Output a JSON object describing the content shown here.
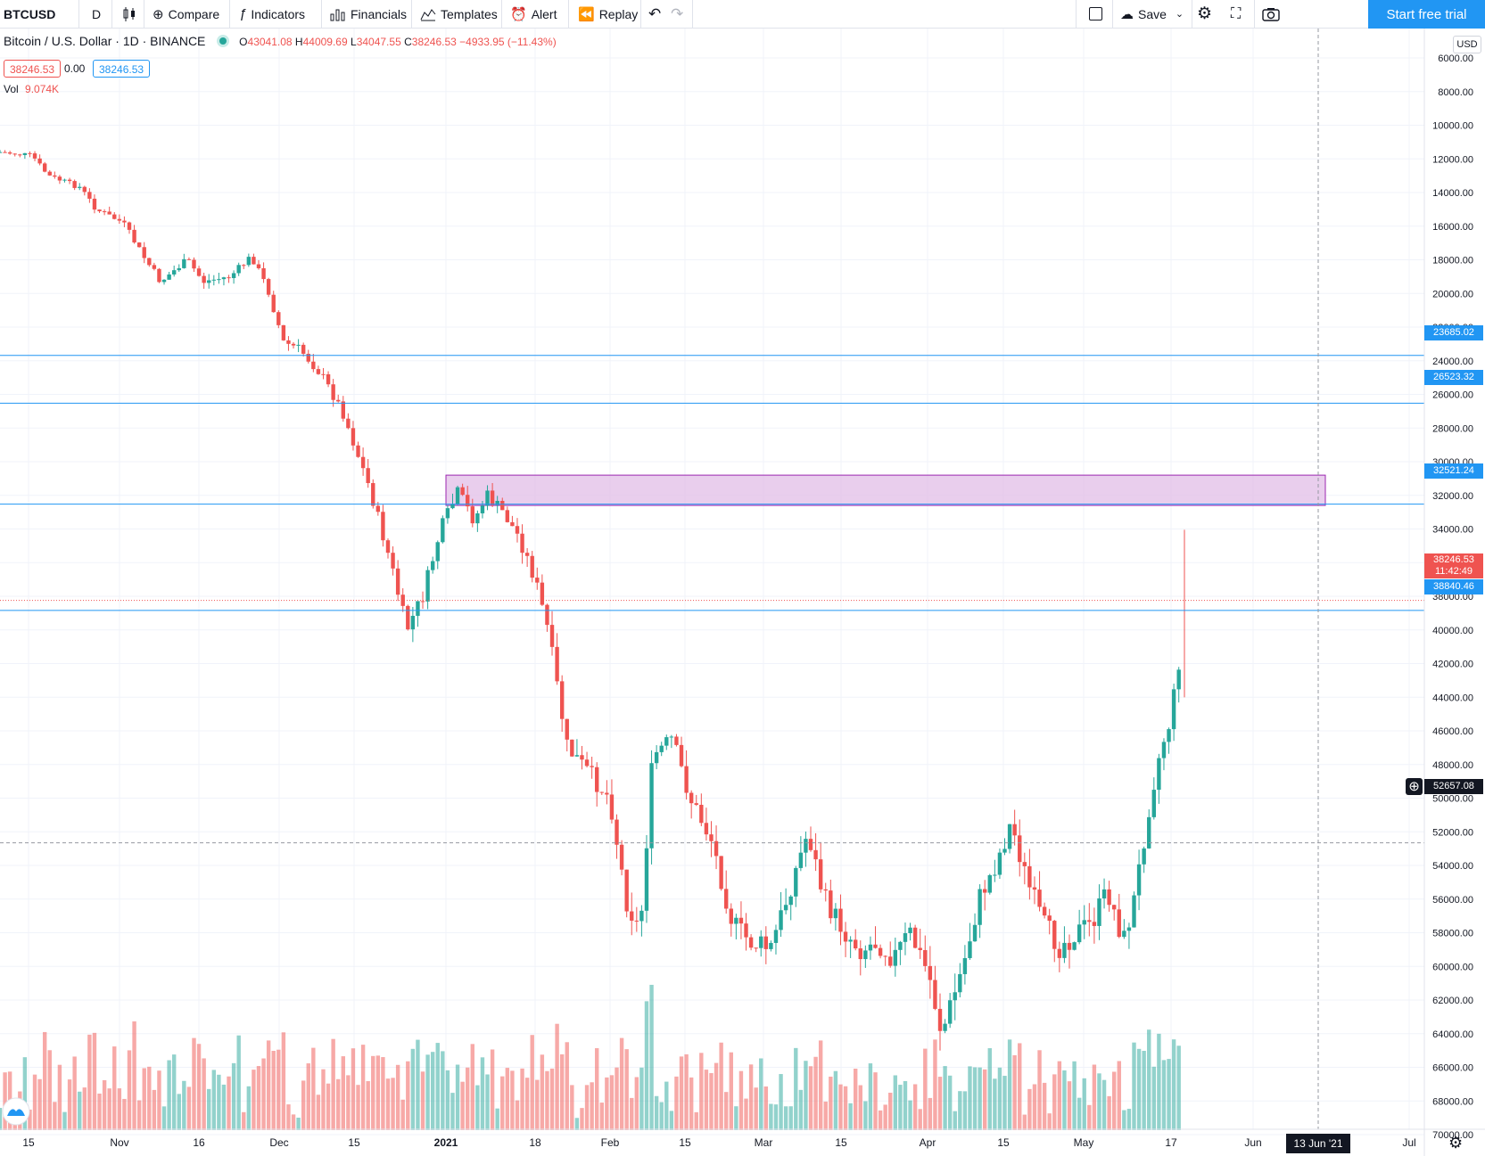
{
  "toolbar": {
    "symbol": "BTCUSD",
    "interval": "D",
    "compare": "Compare",
    "indicators": "Indicators",
    "financials": "Financials",
    "templates": "Templates",
    "alert": "Alert",
    "replay": "Replay",
    "save": "Save",
    "start_trial": "Start free trial"
  },
  "legend": {
    "title": "Bitcoin / U.S. Dollar · 1D · BINANCE",
    "open_k": "O",
    "open": "43041.08",
    "high_k": "H",
    "high": "44009.69",
    "low_k": "L",
    "low": "34047.55",
    "close_k": "C",
    "close": "38246.53",
    "change": "−4933.95 (−11.43%)",
    "bid": "38246.53",
    "spread": "0.00",
    "ask": "38246.53",
    "vol_k": "Vol",
    "vol": "9.074K"
  },
  "axis": {
    "currency": "USD",
    "ticks": [
      "6000.00",
      "8000.00",
      "10000.00",
      "12000.00",
      "14000.00",
      "16000.00",
      "18000.00",
      "20000.00",
      "22000.00",
      "24000.00",
      "26000.00",
      "28000.00",
      "30000.00",
      "32000.00",
      "34000.00",
      "36000.00",
      "38000.00",
      "40000.00",
      "42000.00",
      "44000.00",
      "46000.00",
      "48000.00",
      "50000.00",
      "52000.00",
      "54000.00",
      "56000.00",
      "58000.00",
      "60000.00",
      "62000.00",
      "64000.00",
      "66000.00",
      "68000.00",
      "70000.00"
    ],
    "hlines": [
      "23685.02",
      "26523.32",
      "32521.24",
      "38840.46"
    ],
    "last_price": "38246.53",
    "countdown": "11:42:49",
    "crosshair_price": "52657.08",
    "time_labels": [
      "15",
      "Nov",
      "16",
      "Dec",
      "15",
      "2021",
      "18",
      "Feb",
      "15",
      "Mar",
      "15",
      "Apr",
      "15",
      "May",
      "17",
      "Jun",
      "Jul"
    ],
    "crosshair_date": "13 Jun '21"
  },
  "colors": {
    "up": "#26a69a",
    "down": "#ef5350",
    "hline": "#2196f3",
    "zone": "#e1bee7",
    "zone_border": "#9c27b0"
  },
  "chart_data": {
    "type": "candlestick",
    "symbol": "BTCUSD",
    "interval": "1D",
    "axis": "inverted",
    "ylim": [
      70000,
      6000
    ],
    "hlines": [
      23685.02,
      26523.32,
      32521.24,
      38840.46
    ],
    "zone": [
      30800,
      32600
    ],
    "crosshair_price": 52657.08,
    "last_bar": {
      "open": 43041.08,
      "high": 44009.69,
      "low": 34047.55,
      "close": 38246.53
    }
  }
}
